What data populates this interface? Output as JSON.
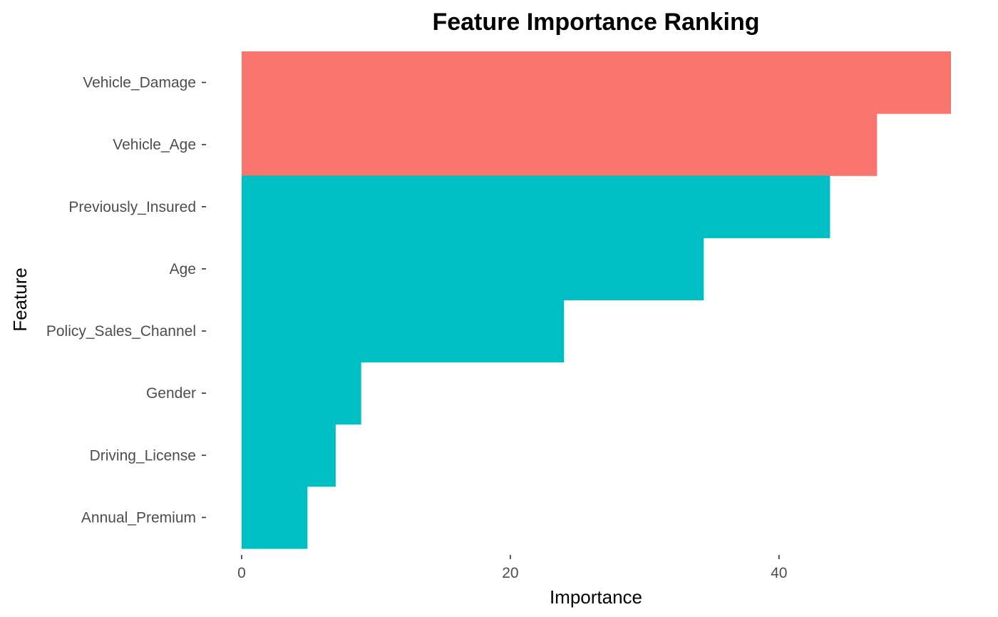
{
  "chart_data": {
    "type": "bar",
    "orientation": "horizontal",
    "title": "Feature Importance Ranking",
    "xlabel": "Importance",
    "ylabel": "Feature",
    "categories": [
      "Vehicle_Damage",
      "Vehicle_Age",
      "Previously_Insured",
      "Age",
      "Policy_Sales_Channel",
      "Gender",
      "Driving_License",
      "Annual_Premium"
    ],
    "values": [
      52.8,
      47.3,
      43.8,
      34.4,
      24.0,
      8.9,
      7.0,
      4.9
    ],
    "groups": [
      "high",
      "high",
      "low",
      "low",
      "low",
      "low",
      "low",
      "low"
    ],
    "group_colors": {
      "high": "#F8766D",
      "low": "#00BFC4"
    },
    "xticks": [
      0,
      20,
      40
    ],
    "xtick_labels": [
      "0",
      "20",
      "40"
    ],
    "xlim": [
      0,
      52.8
    ],
    "grid": false,
    "legend": "none"
  }
}
